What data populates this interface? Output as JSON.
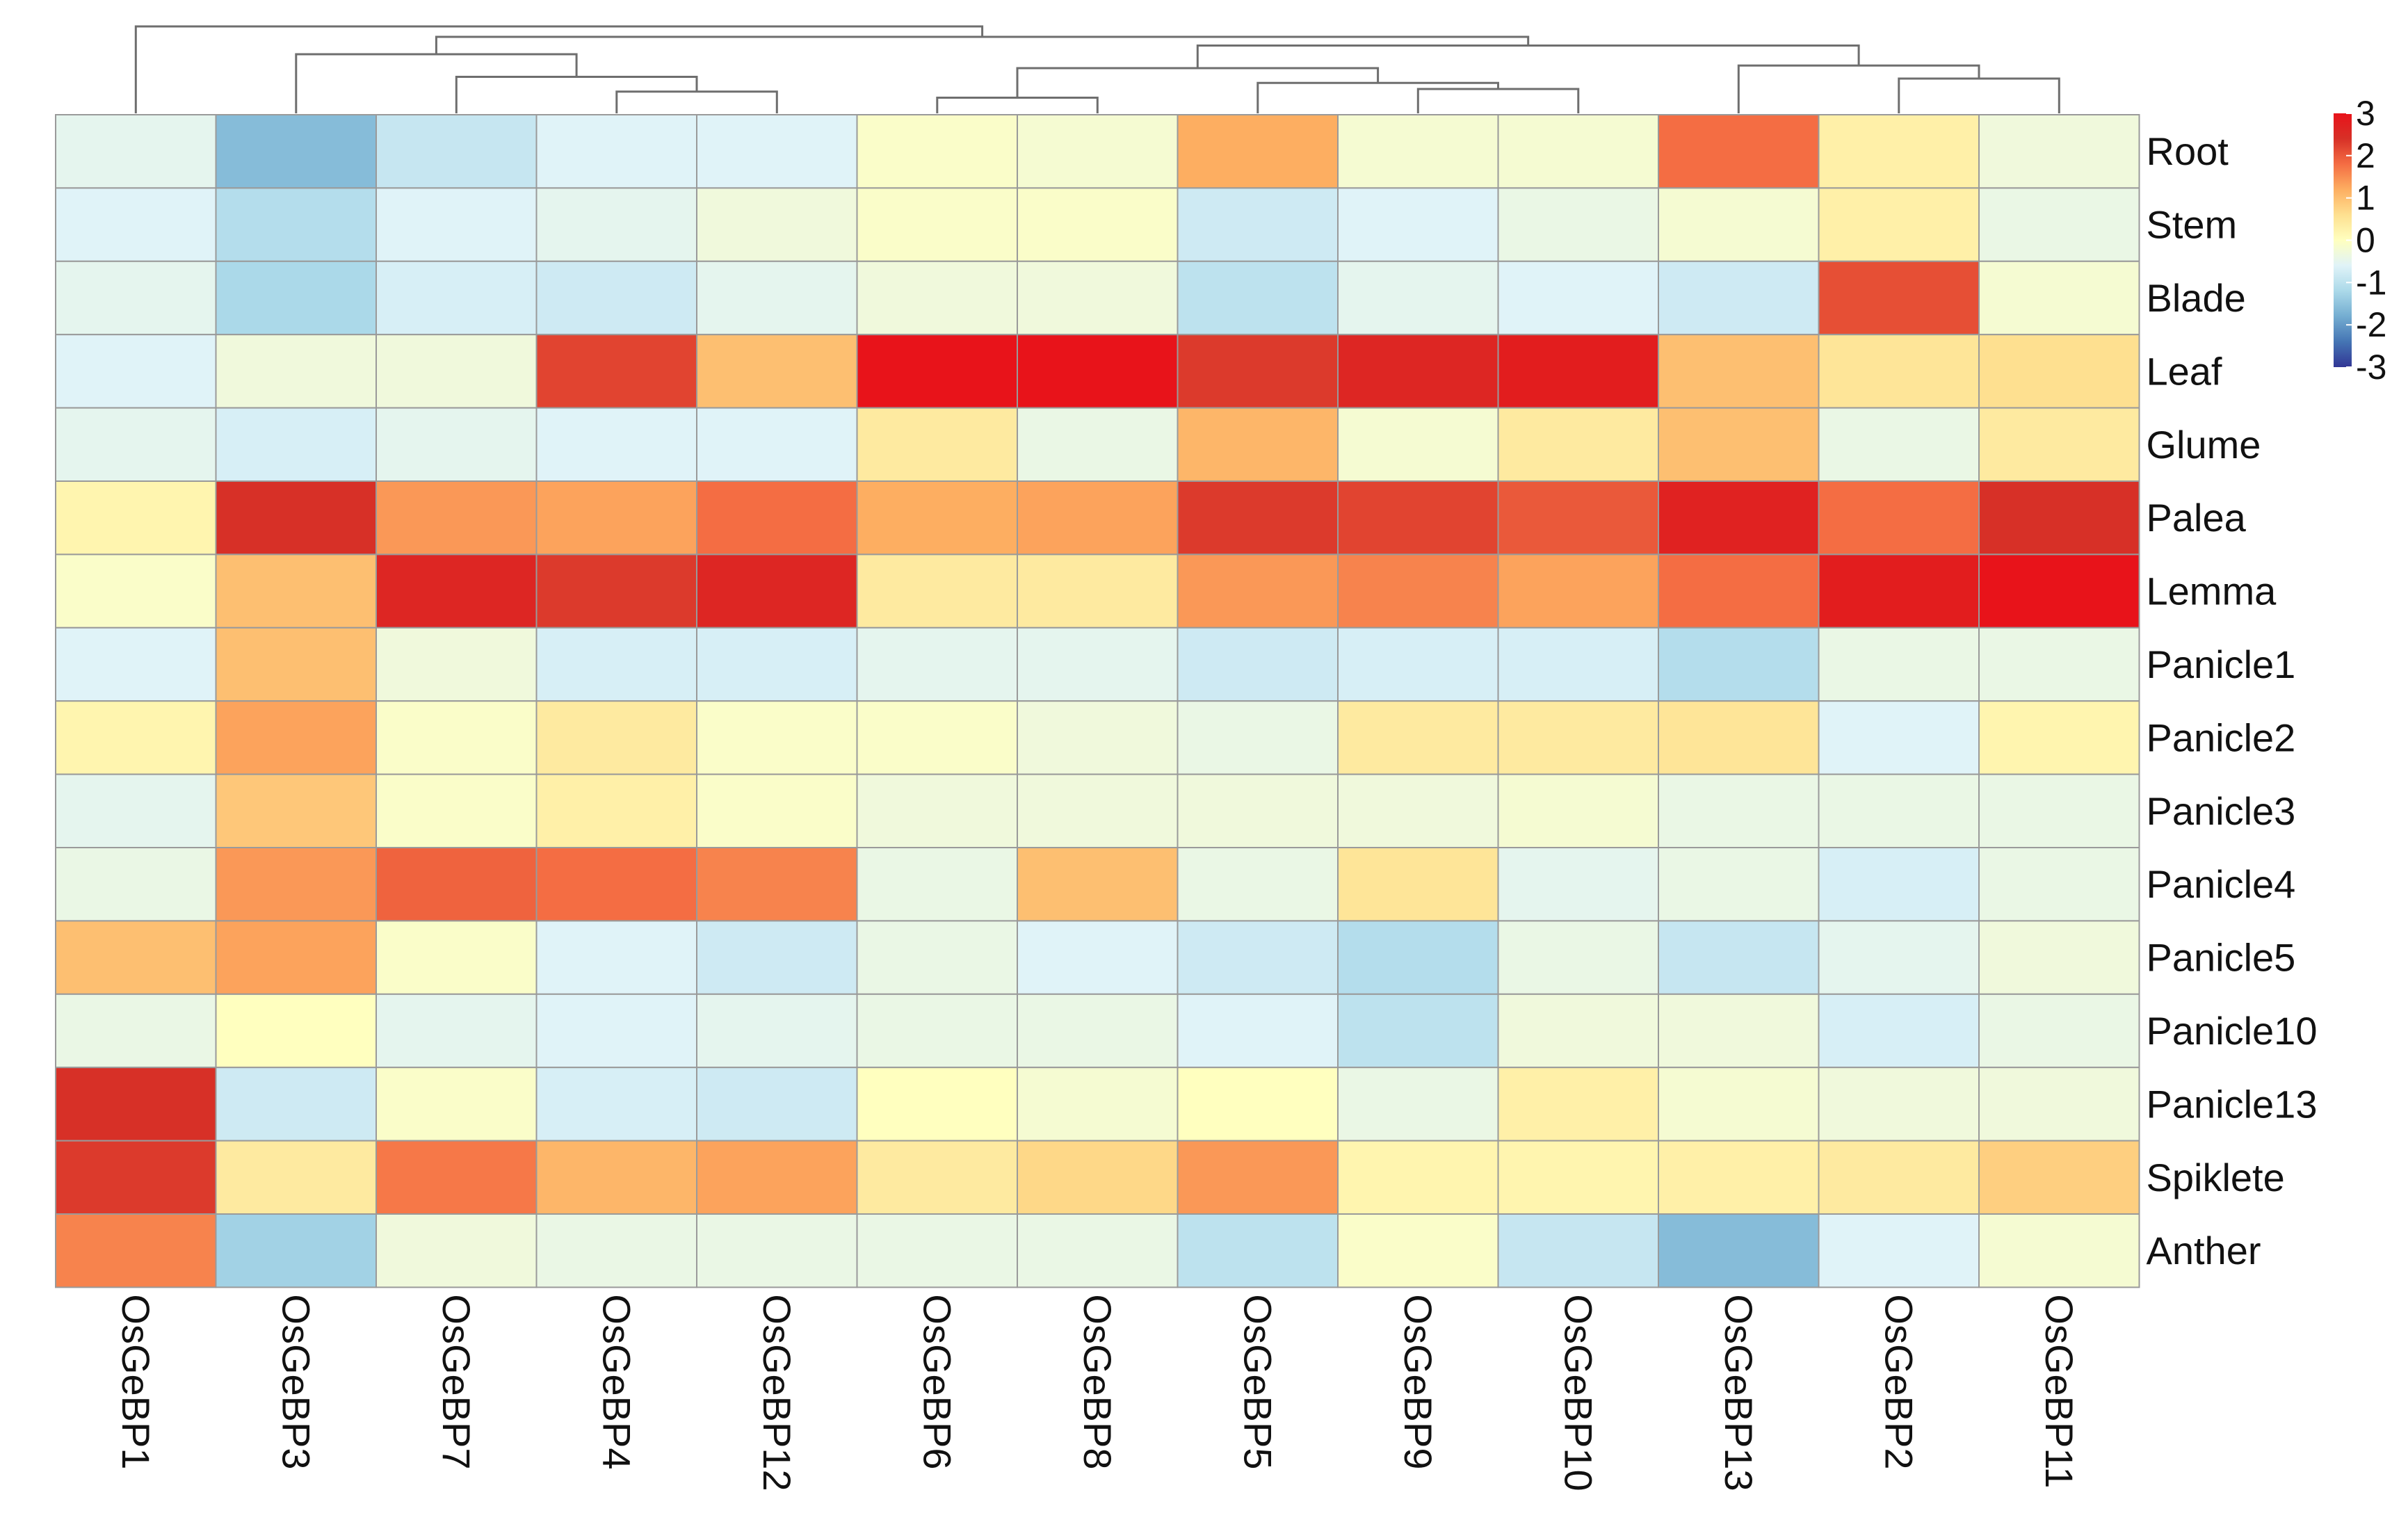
{
  "chart_data": {
    "type": "heatmap",
    "title": "",
    "columns": [
      "OsGeBP1",
      "OsGeBP3",
      "OsGeBP7",
      "OsGeBP4",
      "OsGeBP12",
      "OsGeBP6",
      "OsGeBP8",
      "OsGeBP5",
      "OsGeBP9",
      "OsGeBP10",
      "OsGeBP13",
      "OsGeBP2",
      "OsGeBP11"
    ],
    "rows": [
      "Root",
      "Stem",
      "Blade",
      "Leaf",
      "Glume",
      "Palea",
      "Lemma",
      "Panicle1",
      "Panicle2",
      "Panicle3",
      "Panicle4",
      "Panicle5",
      "Panicle10",
      "Panicle13",
      "Spiklete",
      "Anther"
    ],
    "values": [
      [
        -0.5,
        -1.6,
        -0.9,
        -0.6,
        -0.6,
        -0.1,
        -0.2,
        1.2,
        -0.2,
        -0.2,
        1.8,
        0.3,
        -0.3
      ],
      [
        -0.6,
        -1.1,
        -0.6,
        -0.5,
        -0.3,
        -0.1,
        -0.1,
        -0.8,
        -0.6,
        -0.4,
        -0.2,
        0.3,
        -0.4
      ],
      [
        -0.5,
        -1.2,
        -0.7,
        -0.8,
        -0.5,
        -0.3,
        -0.3,
        -1.0,
        -0.5,
        -0.6,
        -0.8,
        2.1,
        -0.2
      ],
      [
        -0.6,
        -0.3,
        -0.3,
        2.2,
        1.0,
        3.4,
        3.2,
        2.3,
        2.6,
        2.8,
        1.0,
        0.5,
        0.6
      ],
      [
        -0.5,
        -0.7,
        -0.5,
        -0.6,
        -0.6,
        0.4,
        -0.4,
        1.1,
        -0.2,
        0.4,
        1.0,
        -0.4,
        0.4
      ],
      [
        0.2,
        2.4,
        1.4,
        1.3,
        1.8,
        1.2,
        1.3,
        2.3,
        2.2,
        2.0,
        2.7,
        1.8,
        2.4
      ],
      [
        -0.1,
        1.0,
        2.6,
        2.3,
        2.6,
        0.4,
        0.4,
        1.4,
        1.6,
        1.3,
        1.8,
        2.8,
        3.0
      ],
      [
        -0.6,
        1.0,
        -0.3,
        -0.7,
        -0.7,
        -0.5,
        -0.5,
        -0.8,
        -0.7,
        -0.7,
        -1.1,
        -0.4,
        -0.4
      ],
      [
        0.2,
        1.3,
        -0.1,
        0.4,
        -0.1,
        -0.1,
        -0.3,
        -0.4,
        0.4,
        0.4,
        0.5,
        -0.6,
        0.2
      ],
      [
        -0.5,
        0.9,
        -0.1,
        0.3,
        -0.1,
        -0.3,
        -0.3,
        -0.3,
        -0.3,
        -0.2,
        -0.4,
        -0.4,
        -0.4
      ],
      [
        -0.4,
        1.4,
        1.9,
        1.8,
        1.6,
        -0.4,
        1.0,
        -0.4,
        0.5,
        -0.5,
        -0.4,
        -0.7,
        -0.4
      ],
      [
        1.0,
        1.3,
        -0.1,
        -0.6,
        -0.8,
        -0.4,
        -0.6,
        -0.8,
        -1.1,
        -0.4,
        -0.9,
        -0.5,
        -0.3
      ],
      [
        -0.4,
        0.0,
        -0.5,
        -0.6,
        -0.5,
        -0.4,
        -0.4,
        -0.6,
        -1.0,
        -0.3,
        -0.3,
        -0.7,
        -0.4
      ],
      [
        2.4,
        -0.8,
        -0.1,
        -0.7,
        -0.8,
        0.0,
        -0.2,
        0.0,
        -0.4,
        0.3,
        -0.2,
        -0.3,
        -0.3
      ],
      [
        2.3,
        0.4,
        1.7,
        1.1,
        1.3,
        0.4,
        0.7,
        1.4,
        0.2,
        0.2,
        0.3,
        0.4,
        0.8
      ],
      [
        1.6,
        -1.3,
        -0.3,
        -0.4,
        -0.4,
        -0.4,
        -0.4,
        -1.0,
        -0.1,
        -0.9,
        -1.6,
        -0.6,
        -0.2
      ]
    ],
    "scale": {
      "min": -3,
      "max": 3,
      "ticks": [
        3,
        2,
        1,
        0,
        -1,
        -2,
        -3
      ],
      "tick_labels": [
        "3",
        "2",
        "1",
        "0",
        "-1",
        "-2",
        "-3"
      ],
      "colors": [
        "#313695",
        "#4575b4",
        "#74add1",
        "#abd9e9",
        "#e0f3f8",
        "#ffffbf",
        "#fee090",
        "#fdae61",
        "#f46d43",
        "#d73027",
        "#e8131a"
      ]
    },
    "dendrogram": {
      "leaves": [
        "OsGeBP1",
        "OsGeBP3",
        "OsGeBP7",
        "OsGeBP4",
        "OsGeBP12",
        "OsGeBP6",
        "OsGeBP8",
        "OsGeBP5",
        "OsGeBP9",
        "OsGeBP10",
        "OsGeBP13",
        "OsGeBP2",
        "OsGeBP11"
      ],
      "merges": [
        {
          "a": 3,
          "b": 4,
          "height": 0.25
        },
        {
          "a": 8,
          "b": 9,
          "height": 0.28
        },
        {
          "a": 5,
          "b": 6,
          "height": 0.18
        },
        {
          "a": 11,
          "b": 12,
          "height": 0.4
        },
        {
          "a": 2,
          "b": "m0",
          "height": 0.42
        },
        {
          "a": 7,
          "b": "m1",
          "height": 0.35
        },
        {
          "a": 10,
          "b": "m3",
          "height": 0.55
        },
        {
          "a": "m2",
          "b": "m5",
          "height": 0.52
        },
        {
          "a": 1,
          "b": "m4",
          "height": 0.68
        },
        {
          "a": "m7",
          "b": "m6",
          "height": 0.78
        },
        {
          "a": "m8",
          "b": "m9",
          "height": 0.88
        },
        {
          "a": 0,
          "b": "m10",
          "height": 1.0
        }
      ]
    }
  }
}
